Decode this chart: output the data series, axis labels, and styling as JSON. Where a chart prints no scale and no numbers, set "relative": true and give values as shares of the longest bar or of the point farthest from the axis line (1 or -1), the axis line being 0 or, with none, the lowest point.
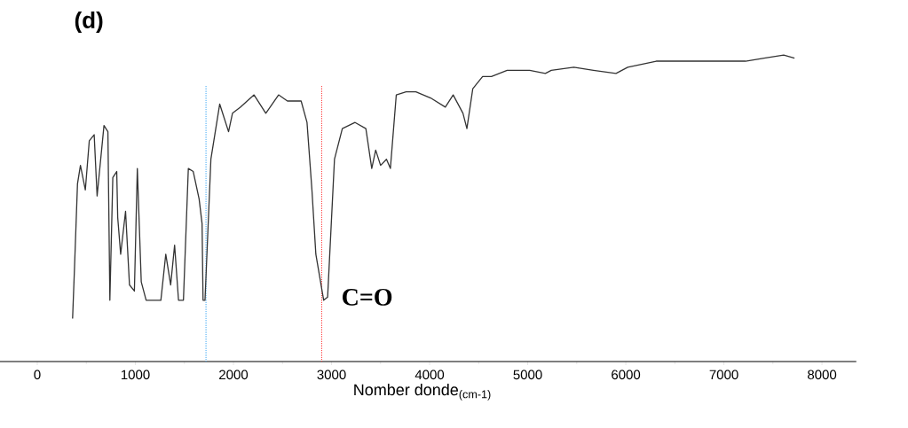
{
  "chart_data": {
    "type": "line",
    "title": "(d)",
    "xlabel": "Nomber donde$_{(cm-1)}$",
    "relative": true,
    "xlim": [
      -500,
      8350
    ],
    "xticks": [
      0,
      1000,
      2000,
      3000,
      4000,
      5000,
      6000,
      7000,
      8000
    ],
    "x": [
      360,
      380,
      410,
      440,
      490,
      530,
      580,
      610,
      680,
      720,
      740,
      770,
      810,
      820,
      850,
      900,
      940,
      990,
      1020,
      1060,
      1110,
      1260,
      1310,
      1360,
      1400,
      1440,
      1490,
      1540,
      1590,
      1650,
      1680,
      1690,
      1710,
      1770,
      1860,
      1950,
      1990,
      2070,
      2210,
      2330,
      2460,
      2550,
      2690,
      2750,
      2800,
      2840,
      2920,
      2960,
      3030,
      3110,
      3240,
      3350,
      3410,
      3450,
      3500,
      3560,
      3600,
      3660,
      3760,
      3860,
      4010,
      4160,
      4240,
      4340,
      4380,
      4440,
      4540,
      4630,
      4790,
      5020,
      5180,
      5240,
      5470,
      5670,
      5900,
      6020,
      6310,
      6640,
      6990,
      7220,
      7410,
      7610,
      7720
    ],
    "series": [
      {
        "color": "#333333",
        "values": [
          0.14,
          0.31,
          0.58,
          0.64,
          0.56,
          0.72,
          0.74,
          0.54,
          0.77,
          0.75,
          0.2,
          0.6,
          0.62,
          0.47,
          0.35,
          0.49,
          0.25,
          0.23,
          0.63,
          0.26,
          0.2,
          0.2,
          0.35,
          0.25,
          0.38,
          0.2,
          0.2,
          0.63,
          0.62,
          0.53,
          0.45,
          0.2,
          0.2,
          0.66,
          0.84,
          0.75,
          0.81,
          0.83,
          0.87,
          0.81,
          0.87,
          0.85,
          0.85,
          0.78,
          0.56,
          0.35,
          0.2,
          0.21,
          0.66,
          0.76,
          0.78,
          0.76,
          0.63,
          0.69,
          0.64,
          0.66,
          0.63,
          0.87,
          0.88,
          0.88,
          0.86,
          0.83,
          0.87,
          0.81,
          0.76,
          0.89,
          0.93,
          0.93,
          0.95,
          0.95,
          0.94,
          0.95,
          0.96,
          0.95,
          0.94,
          0.96,
          0.98,
          0.98,
          0.98,
          0.98,
          0.99,
          1.0,
          0.99
        ]
      }
    ],
    "ref_lines": [
      {
        "axis": "x",
        "value": 1720,
        "color": "#3fa9f5",
        "line_style": "dotted"
      },
      {
        "axis": "x",
        "value": 2900,
        "color": "#ff4040",
        "line_style": "dotted"
      }
    ],
    "annotations": [
      {
        "text": "C=O",
        "x": 2960,
        "y": 0.21
      }
    ]
  }
}
